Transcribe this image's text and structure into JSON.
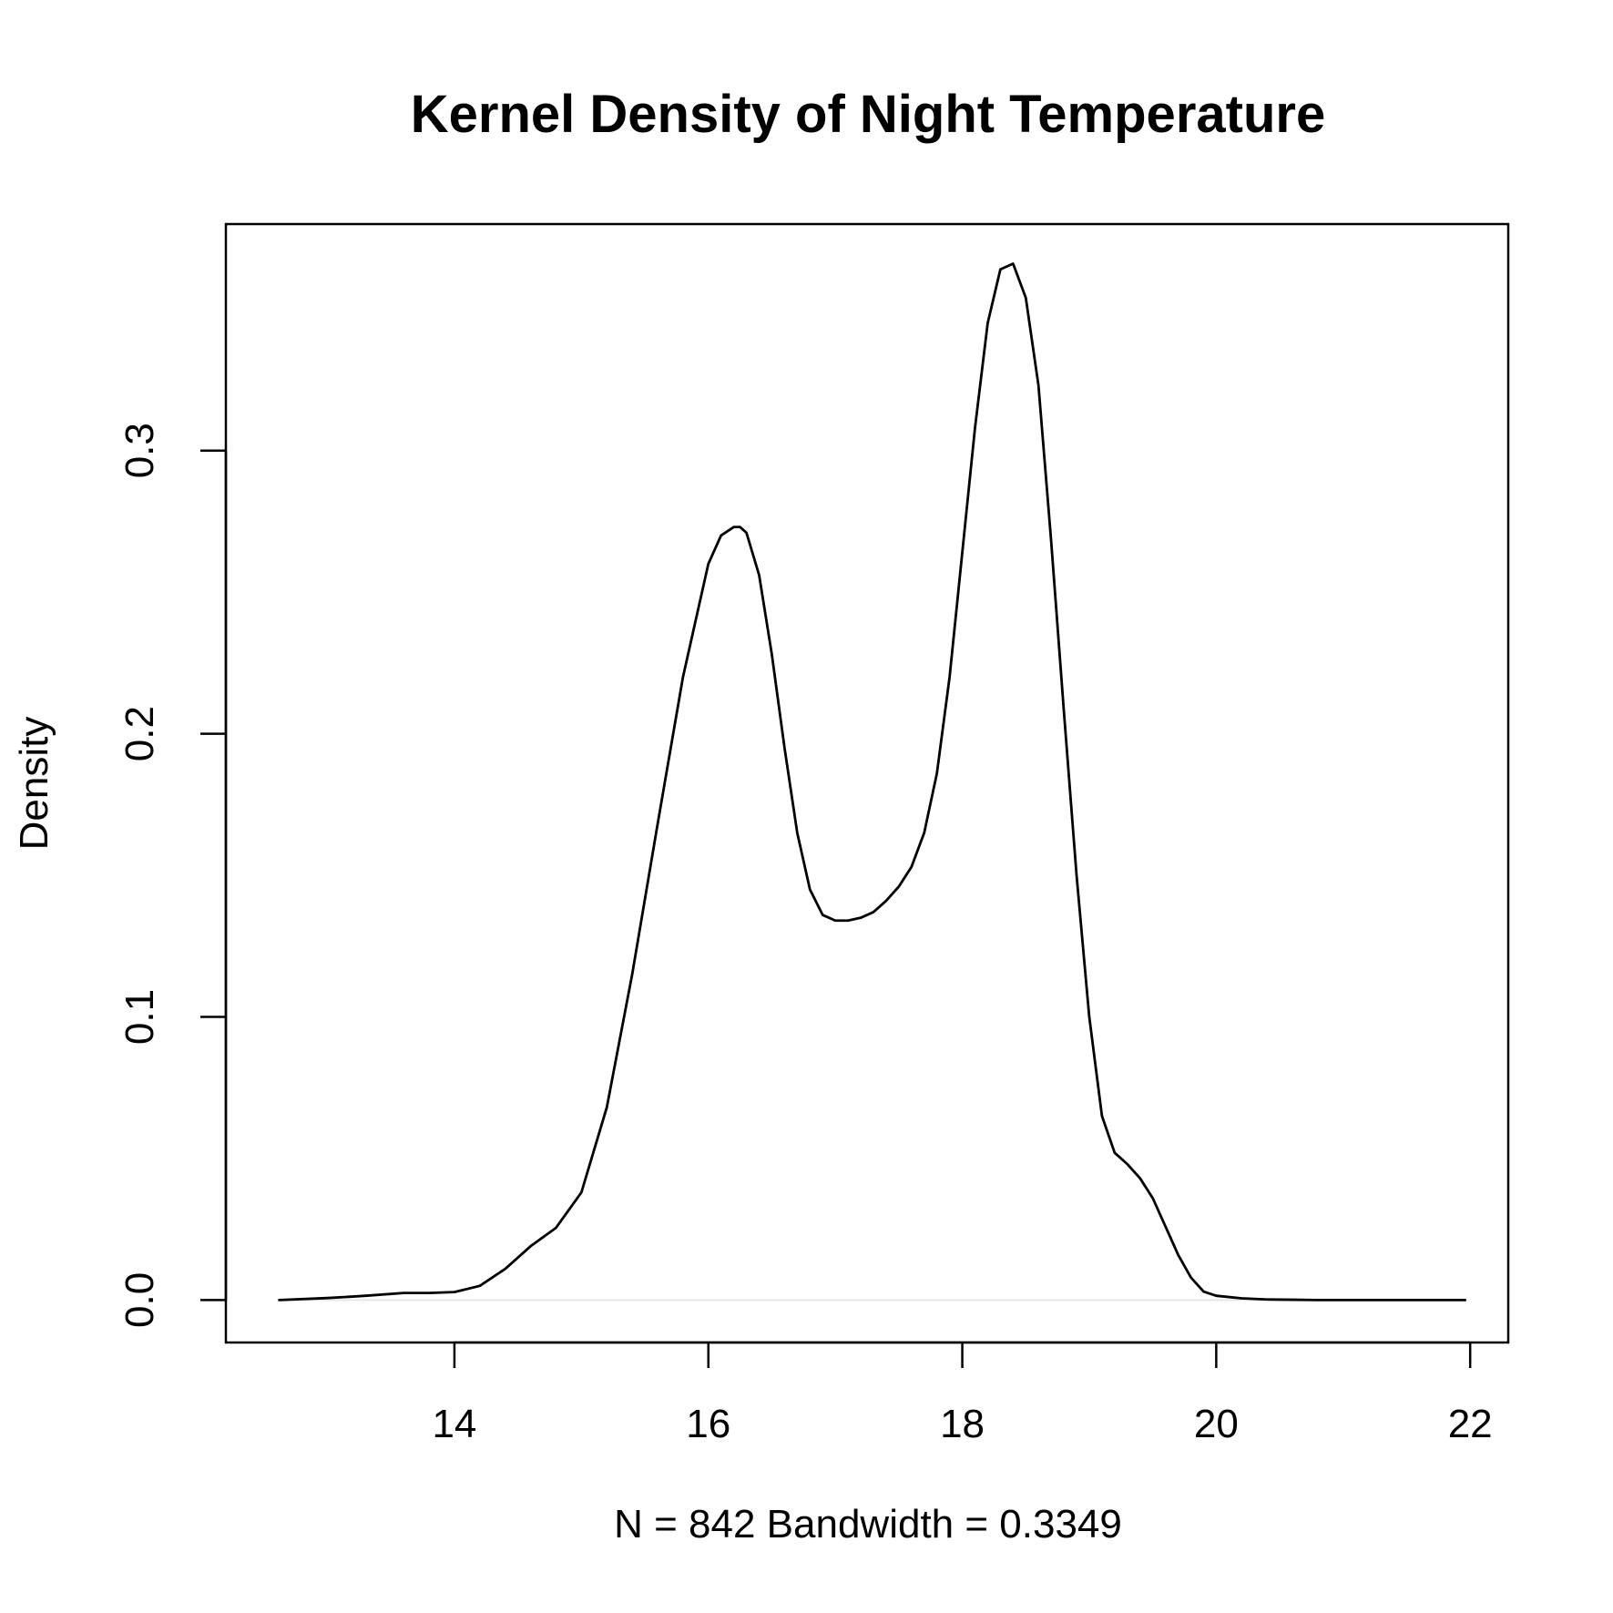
{
  "chart_data": {
    "type": "line",
    "title": "Kernel Density of Night Temperature",
    "xlabel": "N = 842   Bandwidth = 0.3349",
    "ylabel": "Density",
    "xlim": [
      12.2,
      22.3
    ],
    "ylim": [
      -0.015,
      0.38
    ],
    "x_ticks": [
      14,
      16,
      18,
      20,
      22
    ],
    "x_tick_labels": [
      "14",
      "16",
      "18",
      "20",
      "22"
    ],
    "y_ticks": [
      0.0,
      0.1,
      0.2,
      0.3
    ],
    "y_tick_labels": [
      "0.0",
      "0.1",
      "0.2",
      "0.3"
    ],
    "grid": false,
    "zero_line": true,
    "line_color": "#000000",
    "series": [
      {
        "x": [
          12.62,
          13.0,
          13.3,
          13.6,
          13.8,
          14.0,
          14.2,
          14.4,
          14.6,
          14.8,
          15.0,
          15.2,
          15.4,
          15.6,
          15.8,
          16.0,
          16.1,
          16.2,
          16.25,
          16.3,
          16.4,
          16.5,
          16.6,
          16.7,
          16.8,
          16.9,
          17.0,
          17.1,
          17.2,
          17.3,
          17.4,
          17.5,
          17.6,
          17.7,
          17.8,
          17.9,
          18.0,
          18.1,
          18.2,
          18.3,
          18.4,
          18.5,
          18.6,
          18.7,
          18.8,
          18.9,
          19.0,
          19.1,
          19.2,
          19.3,
          19.4,
          19.5,
          19.6,
          19.7,
          19.8,
          19.9,
          20.0,
          20.2,
          20.4,
          20.6,
          20.8,
          21.0,
          21.2,
          21.4,
          21.6,
          21.96
        ],
        "y": [
          0.0,
          0.0007,
          0.0015,
          0.0025,
          0.0025,
          0.0028,
          0.005,
          0.011,
          0.019,
          0.0255,
          0.038,
          0.068,
          0.115,
          0.168,
          0.22,
          0.26,
          0.27,
          0.273,
          0.273,
          0.271,
          0.256,
          0.228,
          0.195,
          0.165,
          0.145,
          0.136,
          0.134,
          0.134,
          0.135,
          0.137,
          0.141,
          0.146,
          0.153,
          0.165,
          0.186,
          0.22,
          0.264,
          0.308,
          0.345,
          0.364,
          0.366,
          0.354,
          0.323,
          0.268,
          0.208,
          0.15,
          0.1,
          0.065,
          0.052,
          0.048,
          0.043,
          0.036,
          0.026,
          0.016,
          0.008,
          0.003,
          0.0015,
          0.0006,
          0.0002,
          0.0001,
          0.0,
          0.0,
          0.0,
          0.0,
          0.0,
          0.0
        ]
      }
    ]
  }
}
